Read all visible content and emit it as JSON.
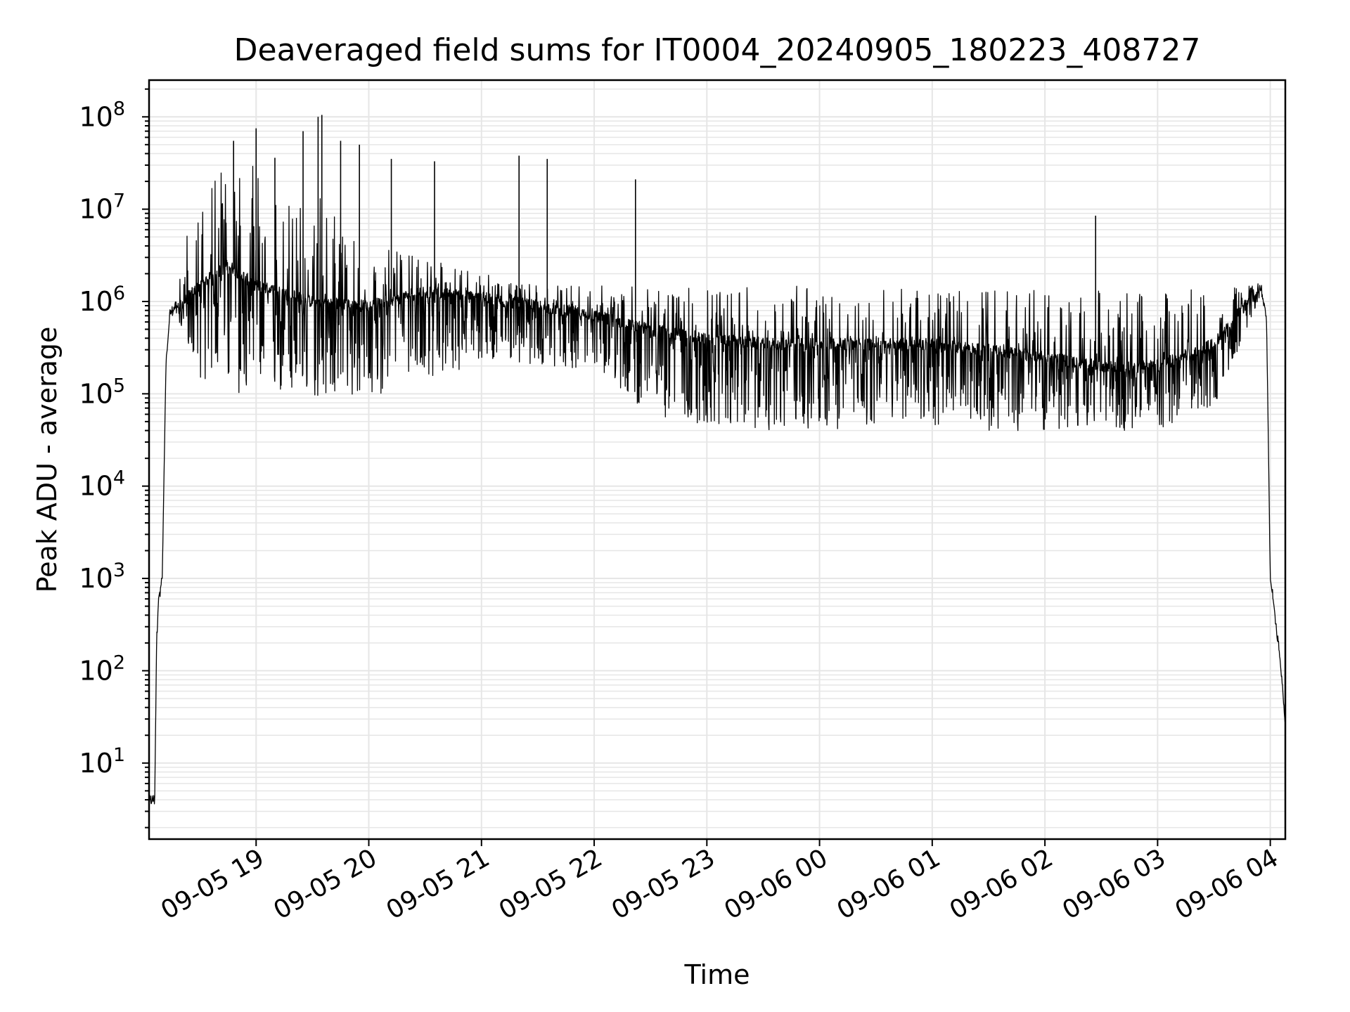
{
  "chart_data": {
    "type": "line",
    "title": "Deaveraged field sums for IT0004_20240905_180223_408727",
    "xlabel": "Time",
    "ylabel": "Peak ADU - average",
    "yscale": "log",
    "ylim": [
      1.5,
      250000000.0
    ],
    "xlim": [
      "2024-09-05 18:03",
      "2024-09-06 04:08"
    ],
    "grid": true,
    "line_color": "#000000",
    "grid_color": "#e6e6e6",
    "x_ticks": [
      {
        "t": "2024-09-05 19:00",
        "label": "09-05 19"
      },
      {
        "t": "2024-09-05 20:00",
        "label": "09-05 20"
      },
      {
        "t": "2024-09-05 21:00",
        "label": "09-05 21"
      },
      {
        "t": "2024-09-05 22:00",
        "label": "09-05 22"
      },
      {
        "t": "2024-09-05 23:00",
        "label": "09-05 23"
      },
      {
        "t": "2024-09-06 00:00",
        "label": "09-06 00"
      },
      {
        "t": "2024-09-06 01:00",
        "label": "09-06 01"
      },
      {
        "t": "2024-09-06 02:00",
        "label": "09-06 02"
      },
      {
        "t": "2024-09-06 03:00",
        "label": "09-06 03"
      },
      {
        "t": "2024-09-06 04:00",
        "label": "09-06 04"
      }
    ],
    "y_ticks": [
      {
        "value": 10,
        "base": "10",
        "exp": "1"
      },
      {
        "value": 100,
        "base": "10",
        "exp": "2"
      },
      {
        "value": 1000,
        "base": "10",
        "exp": "3"
      },
      {
        "value": 10000,
        "base": "10",
        "exp": "4"
      },
      {
        "value": 100000,
        "base": "10",
        "exp": "5"
      },
      {
        "value": 1000000,
        "base": "10",
        "exp": "6"
      },
      {
        "value": 10000000,
        "base": "10",
        "exp": "7"
      },
      {
        "value": 100000000,
        "base": "10",
        "exp": "8"
      }
    ],
    "series": [
      {
        "x": [
          "2024-09-05 18:03",
          "2024-09-05 18:06",
          "2024-09-05 18:07",
          "2024-09-05 18:08",
          "2024-09-05 18:10",
          "2024-09-05 18:12",
          "2024-09-05 18:14",
          "2024-09-05 18:17",
          "2024-09-05 18:20",
          "2024-09-05 18:25",
          "2024-09-05 18:30",
          "2024-09-05 18:45",
          "2024-09-05 19:00",
          "2024-09-05 19:30",
          "2024-09-05 20:00",
          "2024-09-05 20:30",
          "2024-09-05 21:00",
          "2024-09-05 21:30",
          "2024-09-05 22:00",
          "2024-09-05 22:30",
          "2024-09-05 23:00",
          "2024-09-05 23:30",
          "2024-09-06 00:00",
          "2024-09-06 00:30",
          "2024-09-06 01:00",
          "2024-09-06 01:30",
          "2024-09-06 02:00",
          "2024-09-06 02:30",
          "2024-09-06 03:00",
          "2024-09-06 03:30",
          "2024-09-06 03:55",
          "2024-09-06 03:58",
          "2024-09-06 04:00",
          "2024-09-06 04:02",
          "2024-09-06 04:05",
          "2024-09-06 04:08"
        ],
        "y": [
          4,
          4,
          200,
          600,
          1000,
          200000,
          700000,
          900000,
          900000,
          1200000,
          1500000,
          2500000,
          1500000,
          1000000,
          900000,
          1300000,
          1100000,
          900000,
          700000,
          500000,
          400000,
          350000,
          350000,
          350000,
          350000,
          300000,
          250000,
          200000,
          200000,
          350000,
          1500000,
          700000,
          1000,
          500,
          150,
          25
        ],
        "noise_low": [
          4,
          4,
          200,
          600,
          1000,
          200000,
          700000,
          800000,
          500000,
          300000,
          150000,
          100000,
          90000,
          90000,
          90000,
          150000,
          200000,
          200000,
          180000,
          60000,
          45000,
          40000,
          40000,
          45000,
          45000,
          40000,
          40000,
          40000,
          40000,
          70000,
          1200000,
          700000,
          1000,
          500,
          150,
          25
        ],
        "noise_high": [
          4,
          4,
          200,
          600,
          1000,
          200000,
          700000,
          1000000,
          2000000,
          10000000,
          20000000,
          30000000,
          30000000,
          20000000,
          5000000,
          3000000,
          2000000,
          1500000,
          1500000,
          1500000,
          1500000,
          1500000,
          1500000,
          1400000,
          1400000,
          1400000,
          1300000,
          1300000,
          1300000,
          1400000,
          1500000,
          700000,
          1000,
          500,
          150,
          25
        ],
        "spikes": [
          {
            "t": "2024-09-05 18:48",
            "y": 55000000
          },
          {
            "t": "2024-09-05 19:00",
            "y": 75000000
          },
          {
            "t": "2024-09-05 19:10",
            "y": 36000000
          },
          {
            "t": "2024-09-05 19:25",
            "y": 70000000
          },
          {
            "t": "2024-09-05 19:33",
            "y": 100000000
          },
          {
            "t": "2024-09-05 19:35",
            "y": 105000000
          },
          {
            "t": "2024-09-05 19:45",
            "y": 55000000
          },
          {
            "t": "2024-09-05 19:55",
            "y": 50000000
          },
          {
            "t": "2024-09-05 20:12",
            "y": 35000000
          },
          {
            "t": "2024-09-05 20:35",
            "y": 33000000
          },
          {
            "t": "2024-09-05 21:20",
            "y": 38000000
          },
          {
            "t": "2024-09-05 21:35",
            "y": 35000000
          },
          {
            "t": "2024-09-05 22:22",
            "y": 21000000
          },
          {
            "t": "2024-09-06 02:27",
            "y": 8500000
          }
        ]
      }
    ]
  }
}
